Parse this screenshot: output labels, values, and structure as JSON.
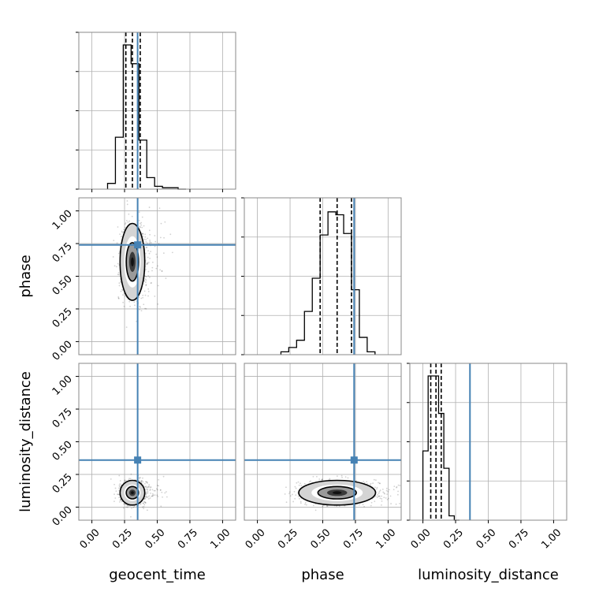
{
  "chart_data": {
    "type": "corner",
    "parameters": [
      "geocent_time",
      "phase",
      "luminosity_distance"
    ],
    "tick_labels": [
      "0.00",
      "0.25",
      "0.50",
      "0.75",
      "1.00"
    ],
    "axis_range": [
      -0.1,
      1.1
    ],
    "truths": {
      "geocent_time": 0.35,
      "phase": 0.74,
      "luminosity_distance": 0.36
    },
    "truth_color": "#4682b4",
    "grid": true,
    "histograms": [
      {
        "parameter": "geocent_time",
        "bin_edges": [
          0.12,
          0.18,
          0.24,
          0.3,
          0.36,
          0.42,
          0.48,
          0.54,
          0.6,
          0.66,
          0.72
        ],
        "counts": [
          0.04,
          0.36,
          1.0,
          0.87,
          0.34,
          0.08,
          0.02,
          0.01,
          0.01,
          0.0
        ],
        "quantiles": [
          0.26,
          0.31,
          0.37
        ]
      },
      {
        "parameter": "phase",
        "bin_edges": [
          0.18,
          0.24,
          0.3,
          0.36,
          0.42,
          0.48,
          0.54,
          0.6,
          0.66,
          0.72,
          0.78,
          0.84,
          0.9
        ],
        "counts": [
          0.02,
          0.05,
          0.1,
          0.3,
          0.53,
          0.83,
          0.99,
          0.97,
          0.84,
          0.45,
          0.12,
          0.02
        ],
        "quantiles": [
          0.48,
          0.61,
          0.72
        ]
      },
      {
        "parameter": "luminosity_distance",
        "bin_edges": [
          0.0,
          0.04,
          0.08,
          0.12,
          0.16,
          0.2,
          0.24,
          0.28
        ],
        "counts": [
          0.48,
          1.0,
          1.0,
          0.74,
          0.36,
          0.03,
          0.0
        ],
        "quantiles": [
          0.06,
          0.1,
          0.14
        ]
      }
    ],
    "scatter_2d": [
      {
        "x": "geocent_time",
        "y": "phase",
        "center": [
          0.31,
          0.61
        ],
        "sigma": [
          0.045,
          0.14
        ]
      },
      {
        "x": "geocent_time",
        "y": "luminosity_distance",
        "center": [
          0.31,
          0.11
        ],
        "sigma": [
          0.045,
          0.045
        ]
      },
      {
        "x": "phase",
        "y": "luminosity_distance",
        "center": [
          0.61,
          0.11
        ],
        "sigma": [
          0.14,
          0.045
        ]
      }
    ]
  }
}
